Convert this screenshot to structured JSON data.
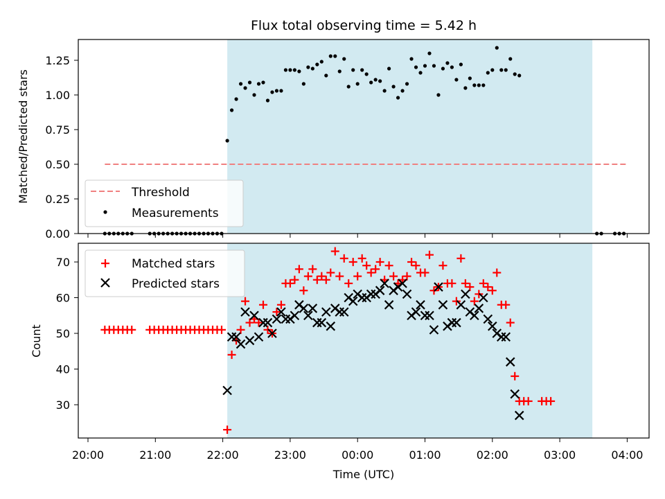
{
  "chart_data": [
    {
      "type": "scatter",
      "title": "Flux total observing time = 5.42 h",
      "xlabel": "",
      "ylabel": "Matched/Predicted stars",
      "ylim": [
        0,
        1.4
      ],
      "yticks": [
        "0.00",
        "0.25",
        "0.50",
        "0.75",
        "1.00",
        "1.25"
      ],
      "shaded_span": {
        "x_start": "22:04",
        "x_end": "03:29",
        "color": "#d2eaf1"
      },
      "threshold": {
        "name": "Threshold",
        "value": 0.5,
        "x_start": "20:15",
        "x_end": "04:00",
        "color": "#f08080",
        "style": "dashed"
      },
      "legend": {
        "position": "lower-left"
      },
      "series": [
        {
          "name": "Measurements",
          "color": "#000000",
          "marker": "dot",
          "points": [
            [
              "20:15",
              0
            ],
            [
              "20:19",
              0
            ],
            [
              "20:23",
              0
            ],
            [
              "20:27",
              0
            ],
            [
              "20:31",
              0
            ],
            [
              "20:35",
              0
            ],
            [
              "20:39",
              0
            ],
            [
              "20:55",
              0
            ],
            [
              "20:59",
              0
            ],
            [
              "21:03",
              0
            ],
            [
              "21:07",
              0
            ],
            [
              "21:11",
              0
            ],
            [
              "21:15",
              0
            ],
            [
              "21:19",
              0
            ],
            [
              "21:23",
              0
            ],
            [
              "21:27",
              0
            ],
            [
              "21:31",
              0
            ],
            [
              "21:35",
              0
            ],
            [
              "21:39",
              0
            ],
            [
              "21:43",
              0
            ],
            [
              "21:47",
              0
            ],
            [
              "21:51",
              0
            ],
            [
              "21:55",
              0
            ],
            [
              "21:59",
              0
            ],
            [
              "22:04",
              0.67
            ],
            [
              "22:08",
              0.89
            ],
            [
              "22:12",
              0.97
            ],
            [
              "22:16",
              1.08
            ],
            [
              "22:20",
              1.05
            ],
            [
              "22:24",
              1.09
            ],
            [
              "22:28",
              1.0
            ],
            [
              "22:32",
              1.08
            ],
            [
              "22:36",
              1.09
            ],
            [
              "22:40",
              0.96
            ],
            [
              "22:44",
              1.02
            ],
            [
              "22:48",
              1.03
            ],
            [
              "22:52",
              1.03
            ],
            [
              "22:56",
              1.18
            ],
            [
              "23:00",
              1.18
            ],
            [
              "23:04",
              1.18
            ],
            [
              "23:08",
              1.17
            ],
            [
              "23:12",
              1.08
            ],
            [
              "23:16",
              1.2
            ],
            [
              "23:20",
              1.19
            ],
            [
              "23:24",
              1.22
            ],
            [
              "23:28",
              1.24
            ],
            [
              "23:32",
              1.14
            ],
            [
              "23:36",
              1.28
            ],
            [
              "23:40",
              1.28
            ],
            [
              "23:44",
              1.17
            ],
            [
              "23:48",
              1.26
            ],
            [
              "23:52",
              1.06
            ],
            [
              "23:56",
              1.18
            ],
            [
              "00:00",
              1.08
            ],
            [
              "00:04",
              1.18
            ],
            [
              "00:08",
              1.15
            ],
            [
              "00:12",
              1.09
            ],
            [
              "00:16",
              1.11
            ],
            [
              "00:20",
              1.1
            ],
            [
              "00:24",
              1.03
            ],
            [
              "00:28",
              1.19
            ],
            [
              "00:32",
              1.06
            ],
            [
              "00:36",
              0.98
            ],
            [
              "00:40",
              1.03
            ],
            [
              "00:44",
              1.08
            ],
            [
              "00:48",
              1.26
            ],
            [
              "00:52",
              1.2
            ],
            [
              "00:56",
              1.16
            ],
            [
              "01:00",
              1.21
            ],
            [
              "01:04",
              1.3
            ],
            [
              "01:08",
              1.21
            ],
            [
              "01:12",
              1.0
            ],
            [
              "01:16",
              1.19
            ],
            [
              "01:20",
              1.23
            ],
            [
              "01:24",
              1.2
            ],
            [
              "01:28",
              1.11
            ],
            [
              "01:32",
              1.22
            ],
            [
              "01:36",
              1.05
            ],
            [
              "01:40",
              1.12
            ],
            [
              "01:44",
              1.07
            ],
            [
              "01:48",
              1.07
            ],
            [
              "01:52",
              1.07
            ],
            [
              "01:56",
              1.16
            ],
            [
              "02:00",
              1.18
            ],
            [
              "02:04",
              1.34
            ],
            [
              "02:08",
              1.18
            ],
            [
              "02:12",
              1.18
            ],
            [
              "02:16",
              1.26
            ],
            [
              "02:20",
              1.15
            ],
            [
              "02:24",
              1.14
            ],
            [
              "03:33",
              0
            ],
            [
              "03:37",
              0
            ],
            [
              "03:49",
              0
            ],
            [
              "03:53",
              0
            ],
            [
              "03:57",
              0
            ]
          ]
        }
      ]
    },
    {
      "type": "scatter",
      "title": "",
      "xlabel": "Time (UTC)",
      "ylabel": "Count",
      "ylim": [
        20.5,
        76
      ],
      "yticks": [
        "30",
        "40",
        "50",
        "60",
        "70"
      ],
      "xticks": [
        "20:00",
        "21:00",
        "22:00",
        "23:00",
        "00:00",
        "01:00",
        "02:00",
        "03:00",
        "04:00"
      ],
      "shaded_span": {
        "x_start": "22:04",
        "x_end": "03:29",
        "color": "#d2eaf1"
      },
      "legend": {
        "position": "top-left"
      },
      "series": [
        {
          "name": "Matched stars",
          "color": "#ff0000",
          "marker": "plus",
          "points": [
            [
              "20:15",
              51
            ],
            [
              "20:19",
              51
            ],
            [
              "20:23",
              51
            ],
            [
              "20:27",
              51
            ],
            [
              "20:31",
              51
            ],
            [
              "20:35",
              51
            ],
            [
              "20:39",
              51
            ],
            [
              "20:55",
              51
            ],
            [
              "20:59",
              51
            ],
            [
              "21:03",
              51
            ],
            [
              "21:07",
              51
            ],
            [
              "21:11",
              51
            ],
            [
              "21:15",
              51
            ],
            [
              "21:19",
              51
            ],
            [
              "21:23",
              51
            ],
            [
              "21:27",
              51
            ],
            [
              "21:31",
              51
            ],
            [
              "21:35",
              51
            ],
            [
              "21:39",
              51
            ],
            [
              "21:43",
              51
            ],
            [
              "21:47",
              51
            ],
            [
              "21:51",
              51
            ],
            [
              "21:55",
              51
            ],
            [
              "21:59",
              51
            ],
            [
              "22:04",
              23
            ],
            [
              "22:08",
              44
            ],
            [
              "22:12",
              48
            ],
            [
              "22:16",
              51
            ],
            [
              "22:20",
              59
            ],
            [
              "22:24",
              53
            ],
            [
              "22:28",
              54
            ],
            [
              "22:32",
              53
            ],
            [
              "22:36",
              58
            ],
            [
              "22:40",
              51
            ],
            [
              "22:44",
              50
            ],
            [
              "22:48",
              56
            ],
            [
              "22:52",
              58
            ],
            [
              "22:56",
              64
            ],
            [
              "23:00",
              64
            ],
            [
              "23:04",
              65
            ],
            [
              "23:08",
              68
            ],
            [
              "23:12",
              62
            ],
            [
              "23:16",
              66
            ],
            [
              "23:20",
              68
            ],
            [
              "23:24",
              65
            ],
            [
              "23:28",
              66
            ],
            [
              "23:32",
              65
            ],
            [
              "23:36",
              67
            ],
            [
              "23:40",
              73
            ],
            [
              "23:44",
              66
            ],
            [
              "23:48",
              71
            ],
            [
              "23:52",
              64
            ],
            [
              "23:56",
              70
            ],
            [
              "00:00",
              66
            ],
            [
              "00:04",
              71
            ],
            [
              "00:08",
              69
            ],
            [
              "00:12",
              67
            ],
            [
              "00:16",
              68
            ],
            [
              "00:20",
              70
            ],
            [
              "00:24",
              65
            ],
            [
              "00:28",
              69
            ],
            [
              "00:32",
              66
            ],
            [
              "00:36",
              64
            ],
            [
              "00:40",
              65
            ],
            [
              "00:44",
              66
            ],
            [
              "00:48",
              70
            ],
            [
              "00:52",
              69
            ],
            [
              "00:56",
              67
            ],
            [
              "01:00",
              67
            ],
            [
              "01:04",
              72
            ],
            [
              "01:08",
              62
            ],
            [
              "01:12",
              63
            ],
            [
              "01:16",
              69
            ],
            [
              "01:20",
              64
            ],
            [
              "01:24",
              64
            ],
            [
              "01:28",
              59
            ],
            [
              "01:32",
              71
            ],
            [
              "01:36",
              64
            ],
            [
              "01:40",
              63
            ],
            [
              "01:44",
              59
            ],
            [
              "01:48",
              61
            ],
            [
              "01:52",
              64
            ],
            [
              "01:56",
              63
            ],
            [
              "02:00",
              62
            ],
            [
              "02:04",
              67
            ],
            [
              "02:08",
              58
            ],
            [
              "02:12",
              58
            ],
            [
              "02:16",
              53
            ],
            [
              "02:20",
              38
            ],
            [
              "02:24",
              31
            ],
            [
              "02:28",
              31
            ],
            [
              "02:32",
              31
            ],
            [
              "02:44",
              31
            ],
            [
              "02:48",
              31
            ],
            [
              "02:52",
              31
            ]
          ]
        },
        {
          "name": "Predicted stars",
          "color": "#000000",
          "marker": "x",
          "points": [
            [
              "22:04",
              34
            ],
            [
              "22:08",
              49
            ],
            [
              "22:12",
              49
            ],
            [
              "22:16",
              47
            ],
            [
              "22:20",
              56
            ],
            [
              "22:24",
              48
            ],
            [
              "22:28",
              55
            ],
            [
              "22:32",
              49
            ],
            [
              "22:36",
              53
            ],
            [
              "22:40",
              53
            ],
            [
              "22:44",
              50
            ],
            [
              "22:48",
              54
            ],
            [
              "22:52",
              56
            ],
            [
              "22:56",
              54
            ],
            [
              "23:00",
              54
            ],
            [
              "23:04",
              55
            ],
            [
              "23:08",
              58
            ],
            [
              "23:12",
              57
            ],
            [
              "23:16",
              55
            ],
            [
              "23:20",
              57
            ],
            [
              "23:24",
              53
            ],
            [
              "23:28",
              53
            ],
            [
              "23:32",
              56
            ],
            [
              "23:36",
              52
            ],
            [
              "23:40",
              57
            ],
            [
              "23:44",
              56
            ],
            [
              "23:48",
              56
            ],
            [
              "23:52",
              60
            ],
            [
              "23:56",
              59
            ],
            [
              "00:00",
              61
            ],
            [
              "00:04",
              60
            ],
            [
              "00:08",
              60
            ],
            [
              "00:12",
              61
            ],
            [
              "00:16",
              61
            ],
            [
              "00:20",
              62
            ],
            [
              "00:24",
              64
            ],
            [
              "00:28",
              58
            ],
            [
              "00:32",
              62
            ],
            [
              "00:36",
              63
            ],
            [
              "00:40",
              64
            ],
            [
              "00:44",
              61
            ],
            [
              "00:48",
              55
            ],
            [
              "00:52",
              56
            ],
            [
              "00:56",
              58
            ],
            [
              "01:00",
              55
            ],
            [
              "01:04",
              55
            ],
            [
              "01:08",
              51
            ],
            [
              "01:12",
              63
            ],
            [
              "01:16",
              58
            ],
            [
              "01:20",
              52
            ],
            [
              "01:24",
              53
            ],
            [
              "01:28",
              53
            ],
            [
              "01:32",
              58
            ],
            [
              "01:36",
              61
            ],
            [
              "01:40",
              56
            ],
            [
              "01:44",
              55
            ],
            [
              "01:48",
              57
            ],
            [
              "01:52",
              60
            ],
            [
              "01:56",
              54
            ],
            [
              "02:00",
              52
            ],
            [
              "02:04",
              50
            ],
            [
              "02:08",
              49
            ],
            [
              "02:12",
              49
            ],
            [
              "02:16",
              42
            ],
            [
              "02:20",
              33
            ],
            [
              "02:24",
              27
            ]
          ]
        }
      ]
    }
  ]
}
